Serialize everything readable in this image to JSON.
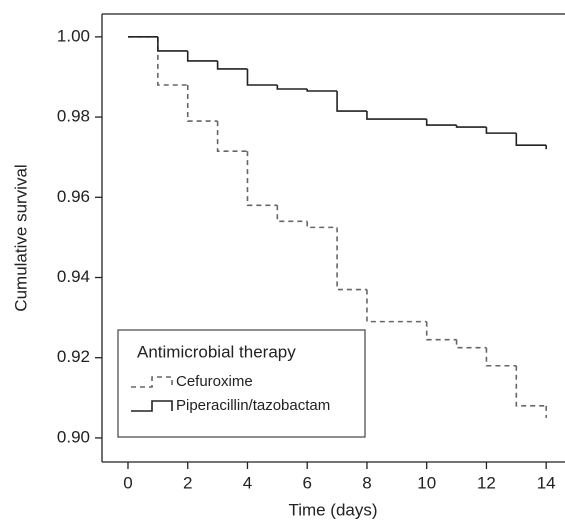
{
  "chart_data": {
    "type": "step",
    "xlabel": "Time (days)",
    "ylabel": "Cumulative survival",
    "xlim": [
      -0.87,
      14.63
    ],
    "ylim": [
      0.894,
      1.0057
    ],
    "xticks": [
      0,
      2,
      4,
      6,
      8,
      10,
      12,
      14
    ],
    "yticks": [
      {
        "value": 0.9,
        "label": "0.90"
      },
      0.92,
      0.94,
      0.96,
      0.98,
      {
        "value": 1,
        "label": "1.00"
      }
    ],
    "legend": {
      "title": "Antimicrobial therapy",
      "position": "lower left"
    },
    "series": [
      {
        "name": "Cefuroxime",
        "color": "#666666",
        "dashed": true,
        "x": [
          0,
          1,
          2,
          3,
          4,
          5,
          6,
          7,
          8,
          10,
          11,
          12,
          13,
          14
        ],
        "values": [
          1.0,
          0.988,
          0.979,
          0.9715,
          0.958,
          0.954,
          0.9525,
          0.937,
          0.929,
          0.9245,
          0.9225,
          0.918,
          0.908,
          0.905
        ]
      },
      {
        "name": "Piperacillin/tazobactam",
        "color": "#222222",
        "dashed": false,
        "x": [
          0,
          1,
          2,
          3,
          4,
          5,
          6,
          7,
          8,
          10,
          11,
          12,
          13,
          14
        ],
        "values": [
          1.0,
          0.9965,
          0.994,
          0.992,
          0.988,
          0.987,
          0.9865,
          0.9815,
          0.9795,
          0.978,
          0.9775,
          0.976,
          0.973,
          0.972
        ]
      }
    ]
  }
}
